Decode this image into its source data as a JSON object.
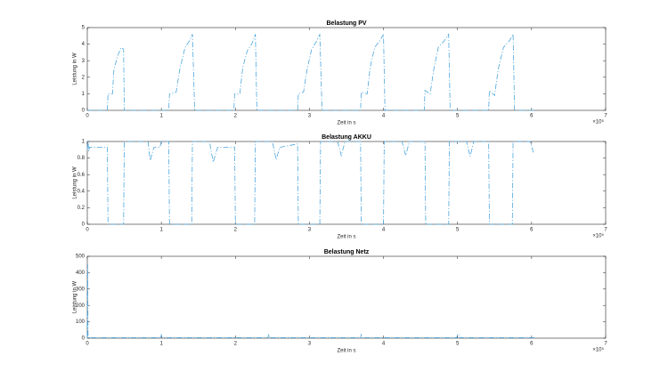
{
  "chart_data": [
    {
      "type": "line",
      "title": "Belastung PV",
      "xlabel": "Zeit in s",
      "ylabel": "Leistung in W",
      "x_multiplier": "×10⁵",
      "xlim": [
        0,
        7
      ],
      "xticks": [
        0,
        1,
        2,
        3,
        4,
        5,
        6,
        7
      ],
      "ylim": [
        0,
        5
      ],
      "yticks": [
        0,
        1,
        2,
        3,
        4,
        5
      ],
      "line_style": "-.",
      "color": "#4da6dc",
      "x": [
        0,
        0.27,
        0.28,
        0.34,
        0.36,
        0.42,
        0.46,
        0.49,
        0.5,
        1.1,
        1.11,
        1.2,
        1.25,
        1.32,
        1.38,
        1.42,
        1.45,
        1.98,
        1.99,
        2.06,
        2.1,
        2.16,
        2.22,
        2.27,
        2.29,
        2.84,
        2.85,
        2.92,
        2.97,
        3.03,
        3.1,
        3.14,
        3.17,
        3.69,
        3.7,
        3.78,
        3.82,
        3.88,
        3.95,
        4.0,
        4.02,
        4.55,
        4.56,
        4.63,
        4.68,
        4.74,
        4.82,
        4.88,
        4.9,
        5.42,
        5.43,
        5.5,
        5.55,
        5.62,
        5.7,
        5.75,
        5.77,
        6.05
      ],
      "values": [
        0,
        0,
        1.0,
        1.0,
        2.5,
        3.4,
        3.8,
        3.7,
        0,
        0,
        1.0,
        1.1,
        2.5,
        3.8,
        4.2,
        4.6,
        0,
        0,
        1.0,
        1.0,
        2.6,
        3.6,
        4.0,
        4.6,
        0,
        0,
        1.0,
        1.1,
        2.5,
        3.7,
        4.2,
        4.6,
        0,
        0,
        1.1,
        1.0,
        2.6,
        3.8,
        4.2,
        4.6,
        0,
        0,
        1.2,
        1.0,
        2.5,
        3.8,
        4.2,
        4.6,
        0,
        0,
        1.2,
        0.9,
        2.5,
        3.8,
        4.2,
        4.6,
        0,
        0
      ]
    },
    {
      "type": "line",
      "title": "Belastung AKKU",
      "xlabel": "Zeit in s",
      "ylabel": "Leistung in W",
      "x_multiplier": "×10⁵",
      "xlim": [
        0,
        7
      ],
      "xticks": [
        0,
        1,
        2,
        3,
        4,
        5,
        6,
        7
      ],
      "ylim": [
        0,
        1
      ],
      "yticks": [
        0,
        0.2,
        0.4,
        0.6,
        0.8,
        1
      ],
      "line_style": "-.",
      "color": "#4da6dc",
      "x": [
        0,
        0.01,
        0.02,
        0.03,
        0.27,
        0.28,
        0.49,
        0.5,
        0.82,
        0.85,
        0.9,
        0.98,
        1.0,
        1.1,
        1.11,
        1.41,
        1.42,
        1.65,
        1.7,
        1.76,
        1.99,
        2.0,
        2.26,
        2.27,
        2.5,
        2.55,
        2.6,
        2.84,
        2.85,
        3.14,
        3.15,
        3.38,
        3.43,
        3.48,
        3.69,
        3.7,
        4.0,
        4.01,
        4.25,
        4.3,
        4.35,
        4.56,
        4.57,
        4.88,
        4.89,
        5.12,
        5.17,
        5.22,
        5.42,
        5.43,
        5.74,
        5.75,
        5.98,
        6.03
      ],
      "values": [
        0.9,
        1.0,
        0.88,
        0.93,
        0.93,
        0,
        0,
        1.0,
        1.0,
        0.77,
        0.93,
        0.93,
        1.0,
        1.0,
        0,
        0,
        1.0,
        1.0,
        0.75,
        0.93,
        0.93,
        0,
        0,
        1.0,
        1.0,
        0.78,
        0.93,
        0.97,
        0,
        0,
        1.0,
        1.0,
        0.83,
        1.0,
        1.0,
        0,
        0,
        1.0,
        1.0,
        0.83,
        1.0,
        1.0,
        0,
        0,
        1.0,
        1.0,
        0.82,
        1.0,
        1.0,
        0,
        0,
        1.0,
        1.0,
        0.85
      ]
    },
    {
      "type": "line",
      "title": "Belastung Netz",
      "xlabel": "Zeit in s",
      "ylabel": "Leistung in W",
      "x_multiplier": "×10⁵",
      "xlim": [
        0,
        7
      ],
      "xticks": [
        0,
        1,
        2,
        3,
        4,
        5,
        6,
        7
      ],
      "ylim": [
        0,
        500
      ],
      "yticks": [
        0,
        100,
        200,
        300,
        400,
        500
      ],
      "line_style": "-.",
      "color": "#4da6dc",
      "x": [
        0,
        0.005,
        0.01,
        0.02,
        0.99,
        1.0,
        1.01,
        2.44,
        2.45,
        2.46,
        3.69,
        3.7,
        3.71,
        4.99,
        5.0,
        5.02,
        5.03,
        6.03
      ],
      "values": [
        0,
        450,
        10,
        3,
        3,
        20,
        3,
        3,
        25,
        3,
        3,
        25,
        3,
        3,
        25,
        20,
        3,
        3
      ]
    }
  ]
}
